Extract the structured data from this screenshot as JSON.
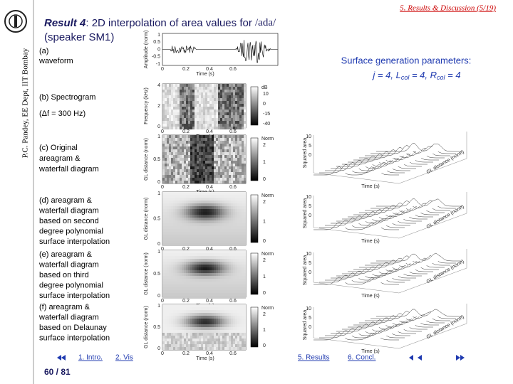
{
  "header": {
    "section": "5. Results & Discussion (5/19)",
    "sidebar": "P.C. Pandey, EE Dept, IIT Bombay"
  },
  "title": {
    "prefix": "Result 4",
    "text": ": 2D interpolation of area values for ",
    "word": "/ada/",
    "line2": "(speaker SM1)"
  },
  "params": {
    "heading": "Surface generation parameters:",
    "formula": [
      "j = 4, L",
      "col",
      " = 4, R",
      "col",
      " = 4"
    ]
  },
  "panels": [
    {
      "label": [
        "(a)",
        "waveform"
      ],
      "ylabel": "Amplitude (norm)",
      "yticks": [
        "1",
        "0.5",
        "0",
        "-0.5",
        "-1"
      ],
      "xticks": [
        "0",
        "0.2",
        "0.4",
        "0.6"
      ],
      "xlabel": "Time (s)"
    },
    {
      "label": [
        "(b) Spectrogram",
        "(Δf = 300 Hz)"
      ],
      "ylabel": "Frequency (kHz)",
      "yticks": [
        "4",
        "2",
        "0"
      ],
      "xticks": [
        "0",
        "0.2",
        "0.4",
        "0.6"
      ],
      "xlabel": "Time (s)",
      "cbar_label": "dB",
      "cbar_ticks": [
        "10",
        "0",
        "-15",
        "-40"
      ]
    },
    {
      "label": [
        "(c) Original",
        "areagram &",
        "waterfall diagram"
      ],
      "ylabel": "GL distance (norm)",
      "yticks": [
        "1",
        "0.5",
        "0"
      ],
      "xticks": [
        "0",
        "0.2",
        "0.4",
        "0.6"
      ],
      "xlabel": "Time (s)",
      "cbar_label": "Norm",
      "cbar_ticks": [
        "2",
        "1",
        "0"
      ]
    },
    {
      "label": [
        "(d) areagram &",
        "waterfall diagram",
        "based on second",
        "degree polynomial",
        "surface interpolation"
      ],
      "ylabel": "GL distance (norm)",
      "yticks": [
        "1",
        "0.5",
        "0"
      ],
      "xticks": [
        "0",
        "0.2",
        "0.4",
        "0.6"
      ],
      "xlabel": "Time (s)",
      "cbar_label": "Norm",
      "cbar_ticks": [
        "2",
        "1",
        "0"
      ]
    },
    {
      "label": [
        "(e) areagram &",
        "waterfall diagram",
        "based on third",
        "degree polynomial",
        "surface interpolation"
      ],
      "ylabel": "GL distance (norm)",
      "yticks": [
        "1",
        "0.5",
        "0"
      ],
      "xticks": [
        "0",
        "0.2",
        "0.4",
        "0.6"
      ],
      "xlabel": "Time (s)",
      "cbar_label": "Norm",
      "cbar_ticks": [
        "2",
        "1",
        "0"
      ]
    },
    {
      "label": [
        "(f) areagram &",
        "waterfall diagram",
        "based on Delaunay",
        "surface interpolation"
      ],
      "ylabel": "GL distance (norm)",
      "yticks": [
        "1",
        "0.5",
        "0"
      ],
      "xticks": [
        "0",
        "0.2",
        "0.4",
        "0.6"
      ],
      "xlabel": "Time (s)",
      "cbar_label": "Norm",
      "cbar_ticks": [
        "2",
        "1",
        "0"
      ]
    }
  ],
  "waterfall": {
    "zlabel": "Squared area",
    "xlabel": "Time (s)",
    "ylabel": "GL distance (norm)",
    "zticks": [
      "10",
      "5",
      "0"
    ]
  },
  "nav": {
    "items": [
      "1. Intro.",
      "2. Vis",
      "5. Results",
      "6. Concl."
    ],
    "page": "60 / 81"
  }
}
